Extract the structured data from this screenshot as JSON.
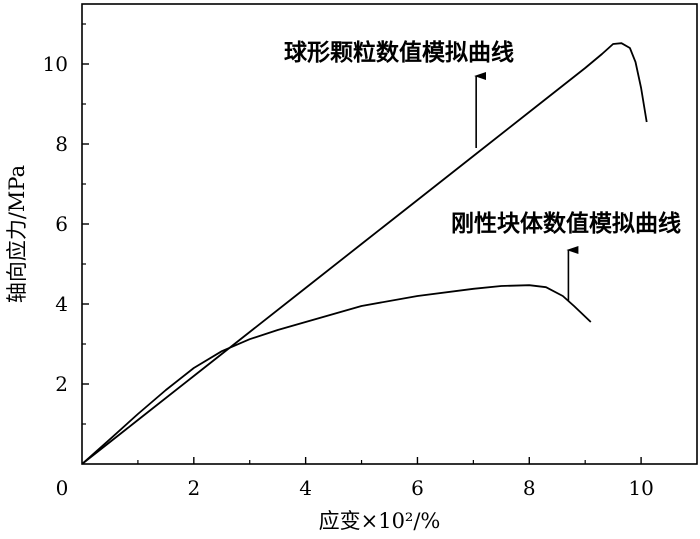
{
  "chart_data": {
    "type": "line",
    "xlabel": "应变×10²/%",
    "ylabel": "轴向应力/MPa",
    "xlim": [
      0,
      11
    ],
    "ylim": [
      0,
      11.5
    ],
    "x_ticks": [
      "0",
      "2",
      "4",
      "6",
      "8",
      "10"
    ],
    "y_ticks": [
      "2",
      "4",
      "6",
      "8",
      "10"
    ],
    "grid": false,
    "series": [
      {
        "x": [
          0,
          0.5,
          1,
          2,
          3,
          4,
          5,
          6,
          7,
          8,
          9,
          9.3,
          9.5,
          9.65,
          9.8,
          9.9,
          10,
          10.1
        ],
        "y": [
          0,
          0.55,
          1.1,
          2.2,
          3.3,
          4.4,
          5.5,
          6.6,
          7.7,
          8.8,
          9.9,
          10.25,
          10.5,
          10.52,
          10.4,
          10.05,
          9.4,
          8.55
        ]
      },
      {
        "x": [
          0,
          0.5,
          1,
          1.5,
          2,
          2.5,
          3,
          3.5,
          4,
          5,
          6,
          7,
          7.5,
          8,
          8.3,
          8.6,
          8.8,
          9.1
        ],
        "y": [
          0,
          0.62,
          1.25,
          1.85,
          2.4,
          2.82,
          3.12,
          3.35,
          3.55,
          3.95,
          4.2,
          4.38,
          4.45,
          4.47,
          4.42,
          4.2,
          3.95,
          3.55
        ]
      }
    ],
    "annotations": [
      {
        "text": "球形颗粒数值模拟曲线",
        "arrow_from": [
          7.05,
          7.9
        ],
        "arrow_to": [
          7.05,
          9.7
        ]
      },
      {
        "text": "刚性块体数值模拟曲线",
        "arrow_from": [
          8.7,
          4.08
        ],
        "arrow_to": [
          8.7,
          5.35
        ]
      }
    ]
  }
}
